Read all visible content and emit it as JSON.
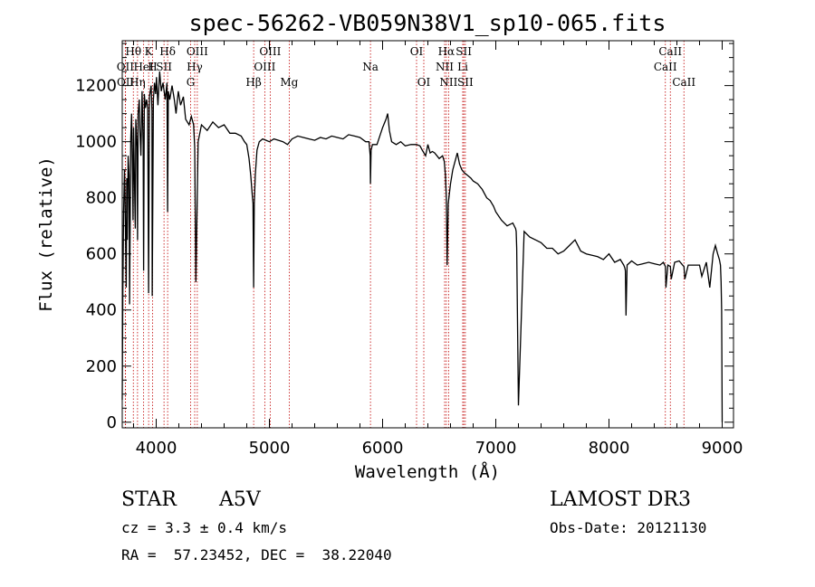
{
  "chart_data": {
    "type": "line",
    "title": "spec-56262-VB059N38V1_sp10-065.fits",
    "xlabel": "Wavelength (Å)",
    "ylabel": "Flux (relative)",
    "xlim": [
      3700,
      9100
    ],
    "ylim": [
      -20,
      1360
    ],
    "xticks": [
      4000,
      5000,
      6000,
      7000,
      8000,
      9000
    ],
    "yticks": [
      0,
      200,
      400,
      600,
      800,
      1000,
      1200
    ],
    "series": [
      {
        "name": "flux",
        "x": [
          3700,
          3705,
          3712,
          3720,
          3725,
          3735,
          3740,
          3745,
          3752,
          3760,
          3765,
          3775,
          3782,
          3790,
          3795,
          3800,
          3815,
          3820,
          3830,
          3835,
          3840,
          3850,
          3855,
          3865,
          3875,
          3885,
          3889,
          3895,
          3905,
          3915,
          3925,
          3933,
          3940,
          3955,
          3962,
          3965,
          3975,
          3985,
          3995,
          4002,
          4015,
          4030,
          4045,
          4060,
          4080,
          4095,
          4101,
          4107,
          4120,
          4140,
          4160,
          4175,
          4195,
          4215,
          4240,
          4260,
          4290,
          4310,
          4330,
          4340,
          4350,
          4370,
          4400,
          4450,
          4500,
          4550,
          4600,
          4650,
          4700,
          4750,
          4780,
          4800,
          4820,
          4835,
          4850,
          4855,
          4861,
          4866,
          4875,
          4890,
          4910,
          4940,
          4970,
          5000,
          5040,
          5080,
          5120,
          5160,
          5200,
          5250,
          5300,
          5350,
          5400,
          5450,
          5500,
          5550,
          5600,
          5650,
          5700,
          5750,
          5800,
          5850,
          5880,
          5890,
          5893,
          5898,
          5910,
          5950,
          6000,
          6030,
          6045,
          6060,
          6080,
          6120,
          6160,
          6200,
          6250,
          6300,
          6330,
          6350,
          6380,
          6400,
          6420,
          6440,
          6460,
          6480,
          6500,
          6530,
          6545,
          6555,
          6563,
          6570,
          6580,
          6600,
          6620,
          6640,
          6660,
          6680,
          6700,
          6720,
          6750,
          6780,
          6800,
          6840,
          6880,
          6920,
          6950,
          6980,
          7000,
          7050,
          7100,
          7150,
          7175,
          7180,
          7185,
          7200,
          7250,
          7300,
          7350,
          7400,
          7450,
          7500,
          7550,
          7600,
          7650,
          7700,
          7750,
          7800,
          7850,
          7900,
          7950,
          8000,
          8050,
          8100,
          8130,
          8140,
          8145,
          8150,
          8160,
          8200,
          8250,
          8300,
          8350,
          8400,
          8450,
          8480,
          8498,
          8503,
          8520,
          8542,
          8550,
          8580,
          8620,
          8650,
          8662,
          8670,
          8700,
          8750,
          8800,
          8820,
          8860,
          8890,
          8920,
          8940,
          8960,
          8975,
          8985,
          8990,
          8995,
          9000
        ],
        "values": [
          80,
          450,
          750,
          900,
          800,
          480,
          870,
          650,
          950,
          880,
          420,
          1010,
          1100,
          890,
          720,
          1050,
          690,
          1080,
          980,
          650,
          1100,
          1150,
          1050,
          950,
          1180,
          990,
          540,
          1170,
          1120,
          1150,
          1120,
          460,
          1160,
          1200,
          1110,
          450,
          1150,
          1210,
          1170,
          1230,
          1130,
          1250,
          1180,
          1210,
          1150,
          1210,
          750,
          1180,
          1150,
          1200,
          1150,
          1100,
          1180,
          1130,
          1160,
          1080,
          1060,
          1090,
          1060,
          980,
          500,
          1000,
          1060,
          1040,
          1070,
          1050,
          1060,
          1030,
          1030,
          1020,
          1000,
          990,
          940,
          880,
          800,
          780,
          480,
          780,
          880,
          970,
          1000,
          1010,
          1005,
          1000,
          1010,
          1005,
          1000,
          990,
          1010,
          1020,
          1015,
          1010,
          1005,
          1015,
          1010,
          1020,
          1015,
          1010,
          1025,
          1020,
          1015,
          1000,
          1000,
          950,
          850,
          970,
          990,
          990,
          1050,
          1080,
          1100,
          1040,
          1000,
          990,
          1000,
          985,
          990,
          990,
          985,
          970,
          950,
          990,
          960,
          965,
          960,
          950,
          940,
          950,
          930,
          880,
          800,
          560,
          780,
          850,
          900,
          930,
          960,
          920,
          900,
          890,
          880,
          870,
          860,
          850,
          830,
          800,
          790,
          770,
          750,
          720,
          700,
          710,
          690,
          680,
          620,
          60,
          680,
          660,
          650,
          640,
          620,
          620,
          600,
          610,
          630,
          650,
          610,
          600,
          595,
          590,
          580,
          600,
          570,
          580,
          560,
          550,
          540,
          380,
          560,
          575,
          560,
          565,
          570,
          565,
          560,
          570,
          555,
          480,
          560,
          555,
          510,
          570,
          575,
          560,
          555,
          510,
          560,
          560,
          560,
          520,
          570,
          480,
          600,
          630,
          600,
          580,
          560,
          500,
          400,
          0
        ]
      }
    ],
    "lines": [
      {
        "label": "Hθ",
        "x": 3798,
        "row": 0
      },
      {
        "label": "OII",
        "x": 3727,
        "row": 1
      },
      {
        "label": "OII",
        "x": 3729,
        "row": 2
      },
      {
        "label": "Hη",
        "x": 3835,
        "row": 2
      },
      {
        "label": "HeI",
        "x": 3889,
        "row": 1
      },
      {
        "label": "K",
        "x": 3933,
        "row": 0
      },
      {
        "label": "H",
        "x": 3968,
        "row": 1
      },
      {
        "label": "SII",
        "x": 4069,
        "row": 1
      },
      {
        "label": "Hδ",
        "x": 4101,
        "row": 0
      },
      {
        "label": "OIII",
        "x": 4363,
        "row": 0
      },
      {
        "label": "Hγ",
        "x": 4340,
        "row": 1
      },
      {
        "label": "G",
        "x": 4304,
        "row": 2
      },
      {
        "label": "OIII",
        "x": 4959,
        "row": 1
      },
      {
        "label": "OIII",
        "x": 5007,
        "row": 0
      },
      {
        "label": "Hβ",
        "x": 4861,
        "row": 2
      },
      {
        "label": "Mg",
        "x": 5175,
        "row": 2
      },
      {
        "label": "Na",
        "x": 5893,
        "row": 1
      },
      {
        "label": "OI",
        "x": 6300,
        "row": 0
      },
      {
        "label": "OI",
        "x": 6364,
        "row": 2
      },
      {
        "label": "Hα",
        "x": 6563,
        "row": 0
      },
      {
        "label": "NII",
        "x": 6548,
        "row": 1
      },
      {
        "label": "NII",
        "x": 6583,
        "row": 2
      },
      {
        "label": "SII",
        "x": 6717,
        "row": 0
      },
      {
        "label": "Li",
        "x": 6708,
        "row": 1
      },
      {
        "label": "SII",
        "x": 6731,
        "row": 2
      },
      {
        "label": "CaII",
        "x": 8542,
        "row": 0
      },
      {
        "label": "CaII",
        "x": 8498,
        "row": 1
      },
      {
        "label": "CaII",
        "x": 8662,
        "row": 2
      }
    ]
  },
  "info": {
    "object_class": "STAR",
    "subclass": "A5V",
    "survey": "LAMOST DR3",
    "cz": "cz = 3.3 ± 0.4 km/s",
    "obs_date": "Obs-Date: 20121130",
    "coords": "RA =  57.23452, DEC =  38.22040"
  },
  "colors": {
    "spectrum": "#000000",
    "line_markers": "#c00000",
    "background": "#ffffff"
  }
}
